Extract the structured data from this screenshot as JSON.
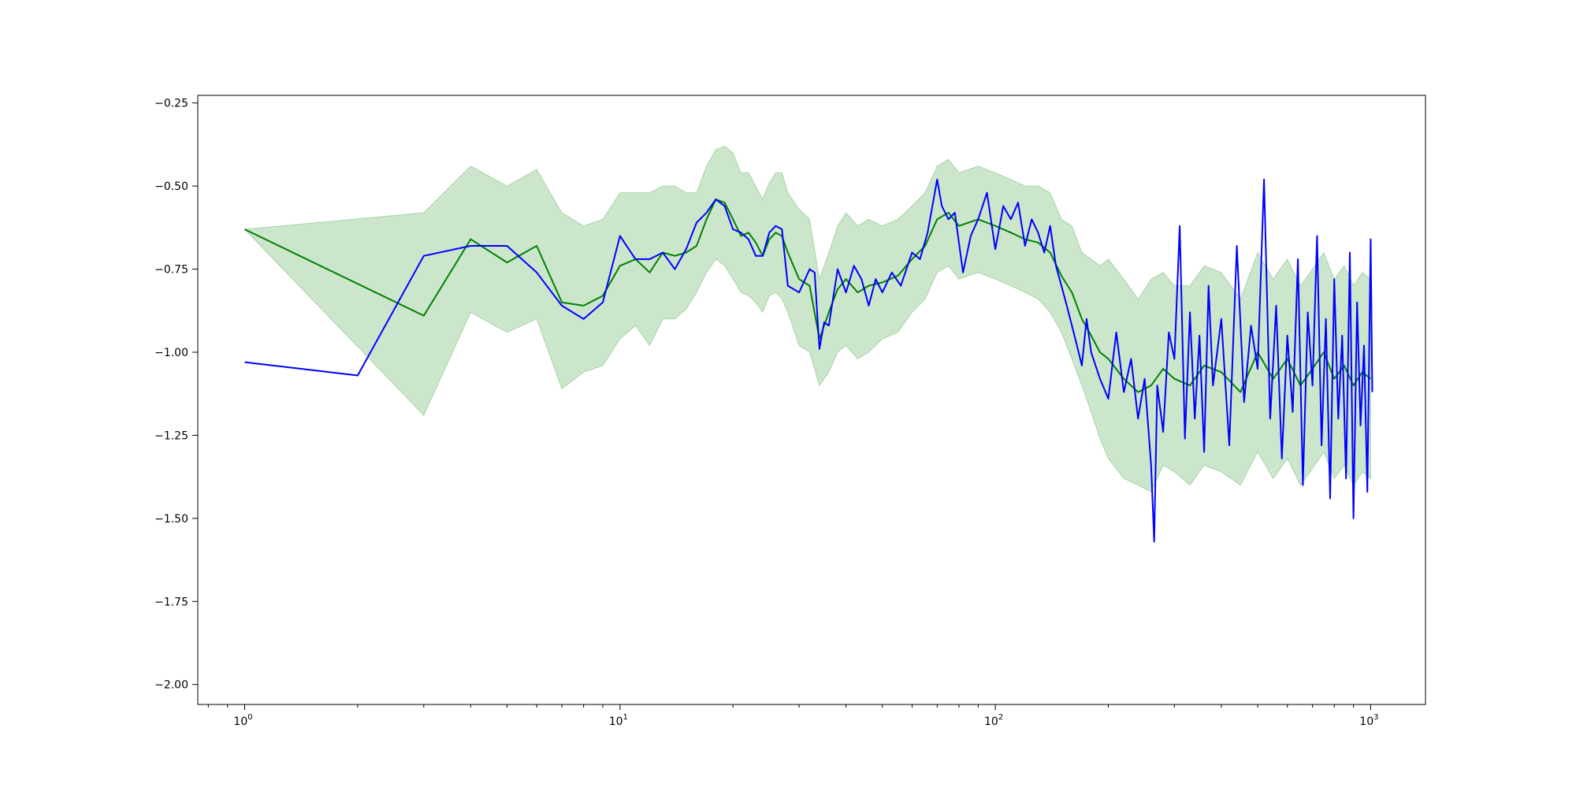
{
  "chart_data": {
    "type": "line",
    "title": "",
    "xlabel": "",
    "ylabel": "",
    "xscale": "log",
    "xlim": [
      0.75,
      1400
    ],
    "ylim": [
      -2.06,
      -0.227
    ],
    "x_ticks": [
      {
        "value": 1,
        "base": "10",
        "exp": "0"
      },
      {
        "value": 10,
        "base": "10",
        "exp": "1"
      },
      {
        "value": 100,
        "base": "10",
        "exp": "2"
      },
      {
        "value": 1000,
        "base": "10",
        "exp": "3"
      }
    ],
    "y_ticks": [
      {
        "value": -0.25,
        "label": "−0.25"
      },
      {
        "value": -0.5,
        "label": "−0.50"
      },
      {
        "value": -0.75,
        "label": "−0.75"
      },
      {
        "value": -1.0,
        "label": "−1.00"
      },
      {
        "value": -1.25,
        "label": "−1.25"
      },
      {
        "value": -1.5,
        "label": "−1.50"
      },
      {
        "value": -1.75,
        "label": "−1.75"
      },
      {
        "value": -2.0,
        "label": "−2.00"
      }
    ],
    "grid": false,
    "legend": "none",
    "series": [
      {
        "color": "#008000",
        "band_color": "#008000",
        "band_opacity": 0.2,
        "x": [
          1,
          3,
          4,
          5,
          6,
          7,
          8,
          9,
          10,
          11,
          12,
          13,
          14,
          15,
          16,
          17,
          18,
          19,
          20,
          21,
          22,
          23,
          24,
          25,
          26,
          27,
          28,
          30,
          32,
          34,
          36,
          38,
          40,
          43,
          46,
          50,
          55,
          60,
          65,
          70,
          75,
          80,
          90,
          100,
          110,
          120,
          130,
          140,
          150,
          160,
          170,
          180,
          190,
          200,
          220,
          240,
          260,
          280,
          300,
          330,
          360,
          400,
          450,
          500,
          550,
          600,
          650,
          700,
          750,
          800,
          850,
          900,
          950,
          1000
        ],
        "values": [
          -0.63,
          -0.89,
          -0.66,
          -0.73,
          -0.68,
          -0.85,
          -0.86,
          -0.83,
          -0.74,
          -0.72,
          -0.76,
          -0.7,
          -0.71,
          -0.7,
          -0.68,
          -0.6,
          -0.54,
          -0.55,
          -0.6,
          -0.65,
          -0.64,
          -0.67,
          -0.71,
          -0.66,
          -0.64,
          -0.65,
          -0.7,
          -0.78,
          -0.8,
          -0.96,
          -0.88,
          -0.81,
          -0.78,
          -0.82,
          -0.8,
          -0.79,
          -0.77,
          -0.72,
          -0.68,
          -0.6,
          -0.58,
          -0.62,
          -0.6,
          -0.62,
          -0.64,
          -0.66,
          -0.67,
          -0.7,
          -0.77,
          -0.82,
          -0.9,
          -0.95,
          -1.0,
          -1.02,
          -1.08,
          -1.12,
          -1.1,
          -1.05,
          -1.08,
          -1.1,
          -1.04,
          -1.06,
          -1.12,
          -1.0,
          -1.08,
          -1.02,
          -1.1,
          -1.05,
          -1.0,
          -1.08,
          -1.04,
          -1.1,
          -1.06,
          -1.08
        ],
        "lower": [
          -0.63,
          -1.19,
          -0.88,
          -0.94,
          -0.9,
          -1.11,
          -1.06,
          -1.04,
          -0.96,
          -0.92,
          -0.98,
          -0.9,
          -0.9,
          -0.87,
          -0.82,
          -0.76,
          -0.72,
          -0.74,
          -0.78,
          -0.82,
          -0.83,
          -0.85,
          -0.88,
          -0.83,
          -0.82,
          -0.84,
          -0.88,
          -0.98,
          -1.0,
          -1.1,
          -1.06,
          -1.0,
          -0.98,
          -1.02,
          -1.0,
          -0.96,
          -0.94,
          -0.88,
          -0.84,
          -0.76,
          -0.74,
          -0.78,
          -0.76,
          -0.78,
          -0.8,
          -0.82,
          -0.84,
          -0.88,
          -0.94,
          -1.02,
          -1.1,
          -1.18,
          -1.26,
          -1.32,
          -1.38,
          -1.4,
          -1.42,
          -1.34,
          -1.36,
          -1.4,
          -1.34,
          -1.36,
          -1.4,
          -1.3,
          -1.38,
          -1.32,
          -1.4,
          -1.35,
          -1.3,
          -1.38,
          -1.34,
          -1.4,
          -1.36,
          -1.38
        ],
        "upper": [
          -0.63,
          -0.58,
          -0.44,
          -0.5,
          -0.45,
          -0.58,
          -0.62,
          -0.6,
          -0.52,
          -0.52,
          -0.52,
          -0.5,
          -0.5,
          -0.52,
          -0.52,
          -0.44,
          -0.39,
          -0.38,
          -0.4,
          -0.46,
          -0.46,
          -0.5,
          -0.54,
          -0.49,
          -0.46,
          -0.46,
          -0.52,
          -0.57,
          -0.6,
          -0.78,
          -0.7,
          -0.62,
          -0.58,
          -0.62,
          -0.6,
          -0.62,
          -0.6,
          -0.56,
          -0.52,
          -0.44,
          -0.42,
          -0.46,
          -0.44,
          -0.46,
          -0.48,
          -0.5,
          -0.5,
          -0.52,
          -0.6,
          -0.62,
          -0.7,
          -0.72,
          -0.74,
          -0.72,
          -0.78,
          -0.84,
          -0.78,
          -0.76,
          -0.8,
          -0.8,
          -0.74,
          -0.76,
          -0.84,
          -0.7,
          -0.78,
          -0.72,
          -0.8,
          -0.75,
          -0.7,
          -0.78,
          -0.74,
          -0.8,
          -0.76,
          -0.78
        ]
      },
      {
        "color": "#0000ff",
        "band_color": "#0000ff",
        "band_opacity": 0.2,
        "x": [
          1,
          2,
          3,
          4,
          5,
          6,
          7,
          8,
          9,
          10,
          11,
          12,
          13,
          14,
          15,
          16,
          17,
          18,
          19,
          20,
          21,
          22,
          23,
          24,
          25,
          26,
          27,
          28,
          30,
          32,
          33,
          34,
          35,
          36,
          38,
          40,
          42,
          44,
          46,
          48,
          50,
          53,
          56,
          60,
          63,
          66,
          70,
          72,
          75,
          78,
          82,
          86,
          90,
          95,
          100,
          105,
          110,
          115,
          120,
          125,
          130,
          135,
          140,
          145,
          150,
          155,
          160,
          165,
          170,
          175,
          180,
          190,
          200,
          210,
          220,
          230,
          240,
          250,
          260,
          265,
          270,
          280,
          290,
          300,
          310,
          320,
          330,
          340,
          350,
          360,
          370,
          380,
          400,
          420,
          440,
          460,
          480,
          500,
          520,
          540,
          560,
          580,
          600,
          620,
          640,
          660,
          680,
          700,
          720,
          740,
          760,
          780,
          800,
          820,
          840,
          860,
          880,
          900,
          920,
          940,
          960,
          980,
          1000,
          1010
        ],
        "values": [
          -1.03,
          -1.07,
          -0.71,
          -0.68,
          -0.68,
          -0.76,
          -0.86,
          -0.9,
          -0.85,
          -0.65,
          -0.72,
          -0.72,
          -0.7,
          -0.75,
          -0.69,
          -0.61,
          -0.58,
          -0.54,
          -0.56,
          -0.63,
          -0.64,
          -0.66,
          -0.71,
          -0.71,
          -0.64,
          -0.62,
          -0.63,
          -0.8,
          -0.82,
          -0.75,
          -0.76,
          -0.99,
          -0.91,
          -0.92,
          -0.75,
          -0.82,
          -0.74,
          -0.78,
          -0.86,
          -0.78,
          -0.82,
          -0.76,
          -0.8,
          -0.7,
          -0.72,
          -0.64,
          -0.48,
          -0.56,
          -0.6,
          -0.58,
          -0.76,
          -0.65,
          -0.6,
          -0.52,
          -0.69,
          -0.56,
          -0.6,
          -0.55,
          -0.68,
          -0.6,
          -0.64,
          -0.7,
          -0.62,
          -0.74,
          -0.8,
          -0.86,
          -0.92,
          -0.98,
          -1.04,
          -0.9,
          -1.0,
          -1.08,
          -1.14,
          -0.94,
          -1.12,
          -1.02,
          -1.2,
          -1.08,
          -1.34,
          -1.57,
          -1.1,
          -1.24,
          -0.94,
          -1.02,
          -0.62,
          -1.26,
          -0.88,
          -1.2,
          -0.95,
          -1.3,
          -0.8,
          -1.1,
          -0.9,
          -1.28,
          -0.68,
          -1.15,
          -0.92,
          -1.05,
          -0.48,
          -1.2,
          -0.86,
          -1.32,
          -0.95,
          -1.18,
          -0.72,
          -1.4,
          -0.88,
          -1.1,
          -0.65,
          -1.28,
          -0.9,
          -1.44,
          -0.78,
          -1.2,
          -0.95,
          -1.38,
          -0.7,
          -1.5,
          -0.85,
          -1.22,
          -0.98,
          -1.42,
          -0.66,
          -1.12
        ]
      }
    ]
  }
}
